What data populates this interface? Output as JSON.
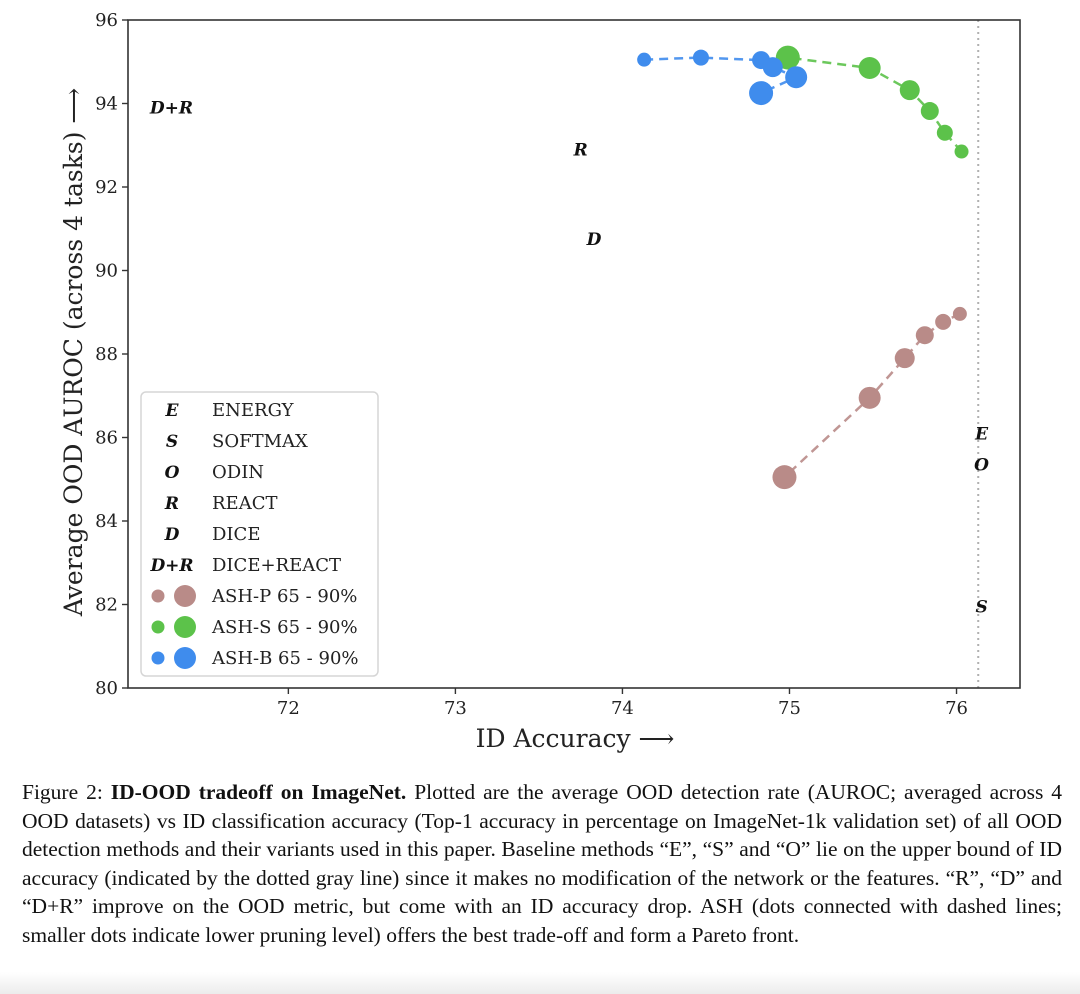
{
  "chart_data": {
    "type": "scatter",
    "title": "",
    "xlabel": "ID Accuracy ⟶",
    "ylabel": "Average OOD AUROC (across 4 tasks) ⟶",
    "xlim": [
      71.04,
      76.38
    ],
    "ylim": [
      80,
      96
    ],
    "xticks": [
      72,
      73,
      74,
      75,
      76
    ],
    "yticks": [
      80,
      82,
      84,
      86,
      88,
      90,
      92,
      94,
      96
    ],
    "grid": false,
    "legend_position": "lower-left",
    "upper_bound_line": {
      "x": 76.13,
      "style": "dotted",
      "color": "#b0b0b0"
    },
    "series": [
      {
        "name": "ASH-P 65 - 90%",
        "color": "#b98b88",
        "connected": "dashed",
        "points": [
          {
            "x": 76.02,
            "y": 88.96,
            "pruning": 65
          },
          {
            "x": 75.92,
            "y": 88.77,
            "pruning": 70
          },
          {
            "x": 75.81,
            "y": 88.45,
            "pruning": 75
          },
          {
            "x": 75.69,
            "y": 87.9,
            "pruning": 80
          },
          {
            "x": 75.48,
            "y": 86.95,
            "pruning": 85
          },
          {
            "x": 74.97,
            "y": 85.05,
            "pruning": 90
          }
        ]
      },
      {
        "name": "ASH-S 65 - 90%",
        "color": "#5cc24a",
        "connected": "dashed",
        "points": [
          {
            "x": 76.03,
            "y": 92.85,
            "pruning": 65
          },
          {
            "x": 75.93,
            "y": 93.3,
            "pruning": 70
          },
          {
            "x": 75.84,
            "y": 93.82,
            "pruning": 75
          },
          {
            "x": 75.72,
            "y": 94.32,
            "pruning": 80
          },
          {
            "x": 75.48,
            "y": 94.85,
            "pruning": 85
          },
          {
            "x": 74.99,
            "y": 95.1,
            "pruning": 90
          }
        ]
      },
      {
        "name": "ASH-B 65 - 90%",
        "color": "#3f8ced",
        "connected": "dashed",
        "points": [
          {
            "x": 74.13,
            "y": 95.05,
            "pruning": 65
          },
          {
            "x": 74.47,
            "y": 95.1,
            "pruning": 70
          },
          {
            "x": 74.83,
            "y": 95.04,
            "pruning": 75
          },
          {
            "x": 74.9,
            "y": 94.87,
            "pruning": 80
          },
          {
            "x": 75.04,
            "y": 94.63,
            "pruning": 85
          },
          {
            "x": 74.83,
            "y": 94.25,
            "pruning": 90
          }
        ]
      }
    ],
    "method_markers": [
      {
        "symbol": "E",
        "name": "ENERGY",
        "x": 76.15,
        "y": 86.1
      },
      {
        "symbol": "S",
        "name": "SOFTMAX",
        "x": 76.15,
        "y": 81.95
      },
      {
        "symbol": "O",
        "name": "ODIN",
        "x": 76.15,
        "y": 85.35
      },
      {
        "symbol": "R",
        "name": "REACT",
        "x": 73.75,
        "y": 92.9
      },
      {
        "symbol": "D",
        "name": "DICE",
        "x": 73.83,
        "y": 90.75
      },
      {
        "symbol": "D+R",
        "name": "DICE+REACT",
        "x": 71.3,
        "y": 93.9
      }
    ],
    "legend": [
      {
        "symbol": "E",
        "label": "ENERGY"
      },
      {
        "symbol": "S",
        "label": "SOFTMAX"
      },
      {
        "symbol": "O",
        "label": "ODIN"
      },
      {
        "symbol": "R",
        "label": "REACT"
      },
      {
        "symbol": "D",
        "label": "DICE"
      },
      {
        "symbol": "D+R",
        "label": "DICE+REACT"
      },
      {
        "dots": "#b98b88",
        "label": "ASH-P 65 - 90%"
      },
      {
        "dots": "#5cc24a",
        "label": "ASH-S 65 - 90%"
      },
      {
        "dots": "#3f8ced",
        "label": "ASH-B 65 - 90%"
      }
    ]
  },
  "caption": {
    "prefix": "Figure 2: ",
    "bold": "ID-OOD tradeoff on ImageNet.",
    "body": " Plotted are the average OOD detection rate (AUROC; averaged across 4 OOD datasets) vs ID classification accuracy (Top-1 accuracy in percentage on ImageNet-1k validation set) of all OOD detection methods and their variants used in this paper. Baseline methods “E”, “S” and “O” lie on the upper bound of ID accuracy (indicated by the dotted gray line) since it makes no modification of the network or the features. “R”, “D” and “D+R” improve on the OOD metric, but come with an ID accuracy drop. ASH (dots connected with dashed lines; smaller dots indicate lower pruning level) offers the best trade-off and form a Pareto front."
  }
}
